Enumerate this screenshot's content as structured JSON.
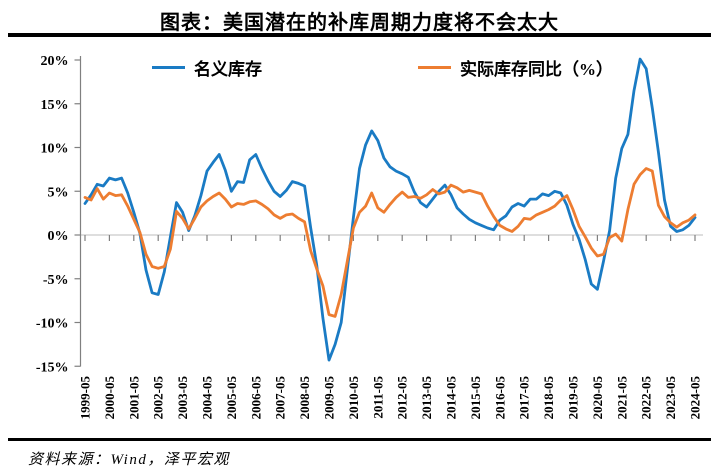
{
  "title": "图表：美国潜在的补库周期力度将不会太大",
  "footer": {
    "source": "资料来源：Wind，泽平宏观"
  },
  "legend": [
    {
      "label": "名义库存",
      "color": "#1a7bc4"
    },
    {
      "label": "实际库存同比（%）",
      "color": "#ed7d31"
    }
  ],
  "colors": {
    "nominal_line": "#1a7bc4",
    "real_line": "#ed7d31",
    "axis": "#808080",
    "zero_gridline": "#c9c9c9",
    "divider": "#000000"
  },
  "chart_data": {
    "type": "line",
    "title": "图表：美国潜在的补库周期力度将不会太大",
    "xlabel": "",
    "ylabel": "",
    "ylim": [
      -15,
      20
    ],
    "grid": "zero-line-only",
    "legend_position": "top-inside",
    "y_ticks": [
      20,
      15,
      10,
      5,
      0,
      -5,
      -10,
      -15
    ],
    "y_tick_labels": [
      "20%",
      "15%",
      "10%",
      "5%",
      "0%",
      "-5%",
      "-10%",
      "-15%"
    ],
    "x_tick_labels": [
      "1999-05",
      "2000-05",
      "2001-05",
      "2002-05",
      "2003-05",
      "2004-05",
      "2005-05",
      "2006-05",
      "2007-05",
      "2008-05",
      "2009-05",
      "2010-05",
      "2011-05",
      "2012-05",
      "2013-05",
      "2014-05",
      "2015-05",
      "2016-05",
      "2017-05",
      "2018-05",
      "2019-05",
      "2020-05",
      "2021-05",
      "2022-05",
      "2023-05",
      "2024-05"
    ],
    "x": [
      "1999-05",
      "1999-08",
      "1999-11",
      "2000-02",
      "2000-05",
      "2000-08",
      "2000-11",
      "2001-02",
      "2001-05",
      "2001-08",
      "2001-11",
      "2002-02",
      "2002-05",
      "2002-08",
      "2002-11",
      "2003-02",
      "2003-05",
      "2003-08",
      "2003-11",
      "2004-02",
      "2004-05",
      "2004-08",
      "2004-11",
      "2005-02",
      "2005-05",
      "2005-08",
      "2005-11",
      "2006-02",
      "2006-05",
      "2006-08",
      "2006-11",
      "2007-02",
      "2007-05",
      "2007-08",
      "2007-11",
      "2008-02",
      "2008-05",
      "2008-08",
      "2008-11",
      "2009-02",
      "2009-05",
      "2009-08",
      "2009-11",
      "2010-02",
      "2010-05",
      "2010-08",
      "2010-11",
      "2011-02",
      "2011-05",
      "2011-08",
      "2011-11",
      "2012-02",
      "2012-05",
      "2012-08",
      "2012-11",
      "2013-02",
      "2013-05",
      "2013-08",
      "2013-11",
      "2014-02",
      "2014-05",
      "2014-08",
      "2014-11",
      "2015-02",
      "2015-05",
      "2015-08",
      "2015-11",
      "2016-02",
      "2016-05",
      "2016-08",
      "2016-11",
      "2017-02",
      "2017-05",
      "2017-08",
      "2017-11",
      "2018-02",
      "2018-05",
      "2018-08",
      "2018-11",
      "2019-02",
      "2019-05",
      "2019-08",
      "2019-11",
      "2020-02",
      "2020-05",
      "2020-08",
      "2020-11",
      "2021-02",
      "2021-05",
      "2021-08",
      "2021-11",
      "2022-02",
      "2022-05",
      "2022-08",
      "2022-11",
      "2023-02",
      "2023-05",
      "2023-08",
      "2023-11",
      "2024-02",
      "2024-05"
    ],
    "series": [
      {
        "name": "名义库存",
        "color": "#1a7bc4",
        "values": [
          3.6,
          4.6,
          5.8,
          5.6,
          6.5,
          6.3,
          6.5,
          4.8,
          2.6,
          0.2,
          -4.0,
          -6.6,
          -6.8,
          -4.2,
          -0.2,
          3.7,
          2.6,
          0.5,
          2.2,
          4.5,
          7.3,
          8.3,
          9.2,
          7.4,
          5.0,
          6.1,
          6.0,
          8.6,
          9.2,
          7.6,
          6.2,
          5.0,
          4.4,
          5.1,
          6.1,
          5.9,
          5.6,
          0.8,
          -3.5,
          -9.5,
          -14.3,
          -12.5,
          -10.0,
          -4.0,
          2.0,
          7.6,
          10.3,
          11.9,
          10.8,
          8.8,
          7.8,
          7.3,
          7.0,
          6.6,
          4.9,
          3.7,
          3.2,
          4.1,
          5.0,
          5.7,
          4.6,
          3.1,
          2.4,
          1.8,
          1.4,
          1.1,
          0.8,
          0.6,
          1.7,
          2.2,
          3.2,
          3.6,
          3.3,
          4.1,
          4.1,
          4.7,
          4.5,
          5.0,
          4.8,
          3.4,
          1.2,
          -0.5,
          -2.8,
          -5.6,
          -6.2,
          -3.0,
          0.5,
          6.5,
          9.9,
          11.5,
          16.5,
          20.1,
          19.0,
          14.5,
          9.5,
          4.0,
          1.0,
          0.4,
          0.6,
          1.1,
          2.0
        ]
      },
      {
        "name": "实际库存同比（%）",
        "color": "#ed7d31",
        "values": [
          4.3,
          4.0,
          5.3,
          4.1,
          4.8,
          4.5,
          4.6,
          3.3,
          1.8,
          0.3,
          -2.2,
          -3.6,
          -3.8,
          -3.6,
          -1.6,
          2.7,
          1.9,
          0.7,
          1.9,
          3.2,
          3.9,
          4.4,
          4.8,
          4.1,
          3.2,
          3.6,
          3.5,
          3.8,
          3.9,
          3.5,
          3.0,
          2.3,
          1.9,
          2.3,
          2.4,
          1.9,
          1.5,
          -1.8,
          -3.9,
          -5.8,
          -9.1,
          -9.3,
          -6.8,
          -3.0,
          0.8,
          2.6,
          3.3,
          4.8,
          3.1,
          2.6,
          3.5,
          4.3,
          4.9,
          4.3,
          4.4,
          4.2,
          4.6,
          5.2,
          4.7,
          4.9,
          5.7,
          5.4,
          4.9,
          5.1,
          4.9,
          4.7,
          3.3,
          2.1,
          1.1,
          0.7,
          0.4,
          1.0,
          1.9,
          1.8,
          2.3,
          2.6,
          2.9,
          3.3,
          4.0,
          4.5,
          2.9,
          1.0,
          -0.2,
          -1.5,
          -2.4,
          -2.2,
          -0.3,
          0.1,
          -0.7,
          2.9,
          5.8,
          6.9,
          7.6,
          7.3,
          3.4,
          2.1,
          1.4,
          0.9,
          1.4,
          1.7,
          2.3
        ]
      }
    ]
  }
}
